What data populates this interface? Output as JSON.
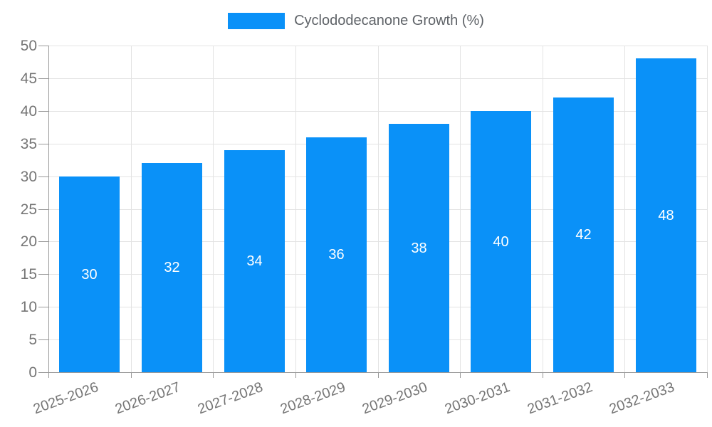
{
  "chart_data": {
    "type": "bar",
    "title": "",
    "legend": "Cyclododecanone Growth (%)",
    "categories": [
      "2025-2026",
      "2026-2027",
      "2027-2028",
      "2028-2029",
      "2029-2030",
      "2030-2031",
      "2031-2032",
      "2032-2033"
    ],
    "values": [
      30,
      32,
      34,
      36,
      38,
      40,
      42,
      48
    ],
    "value_labels": [
      "30",
      "32",
      "34",
      "36",
      "38",
      "40",
      "42",
      "48"
    ],
    "xlabel": "",
    "ylabel": "",
    "ylim": [
      0,
      50
    ],
    "ytick_step": 5,
    "grid": "on",
    "legend_position": "top-center",
    "colors": {
      "bar": "#0a91f8",
      "axis": "#999999",
      "grid": "#e3e3e3",
      "tick_label": "#757575",
      "legend_text": "#5f6368",
      "value_label": "#ffffff",
      "background": "#ffffff"
    }
  }
}
